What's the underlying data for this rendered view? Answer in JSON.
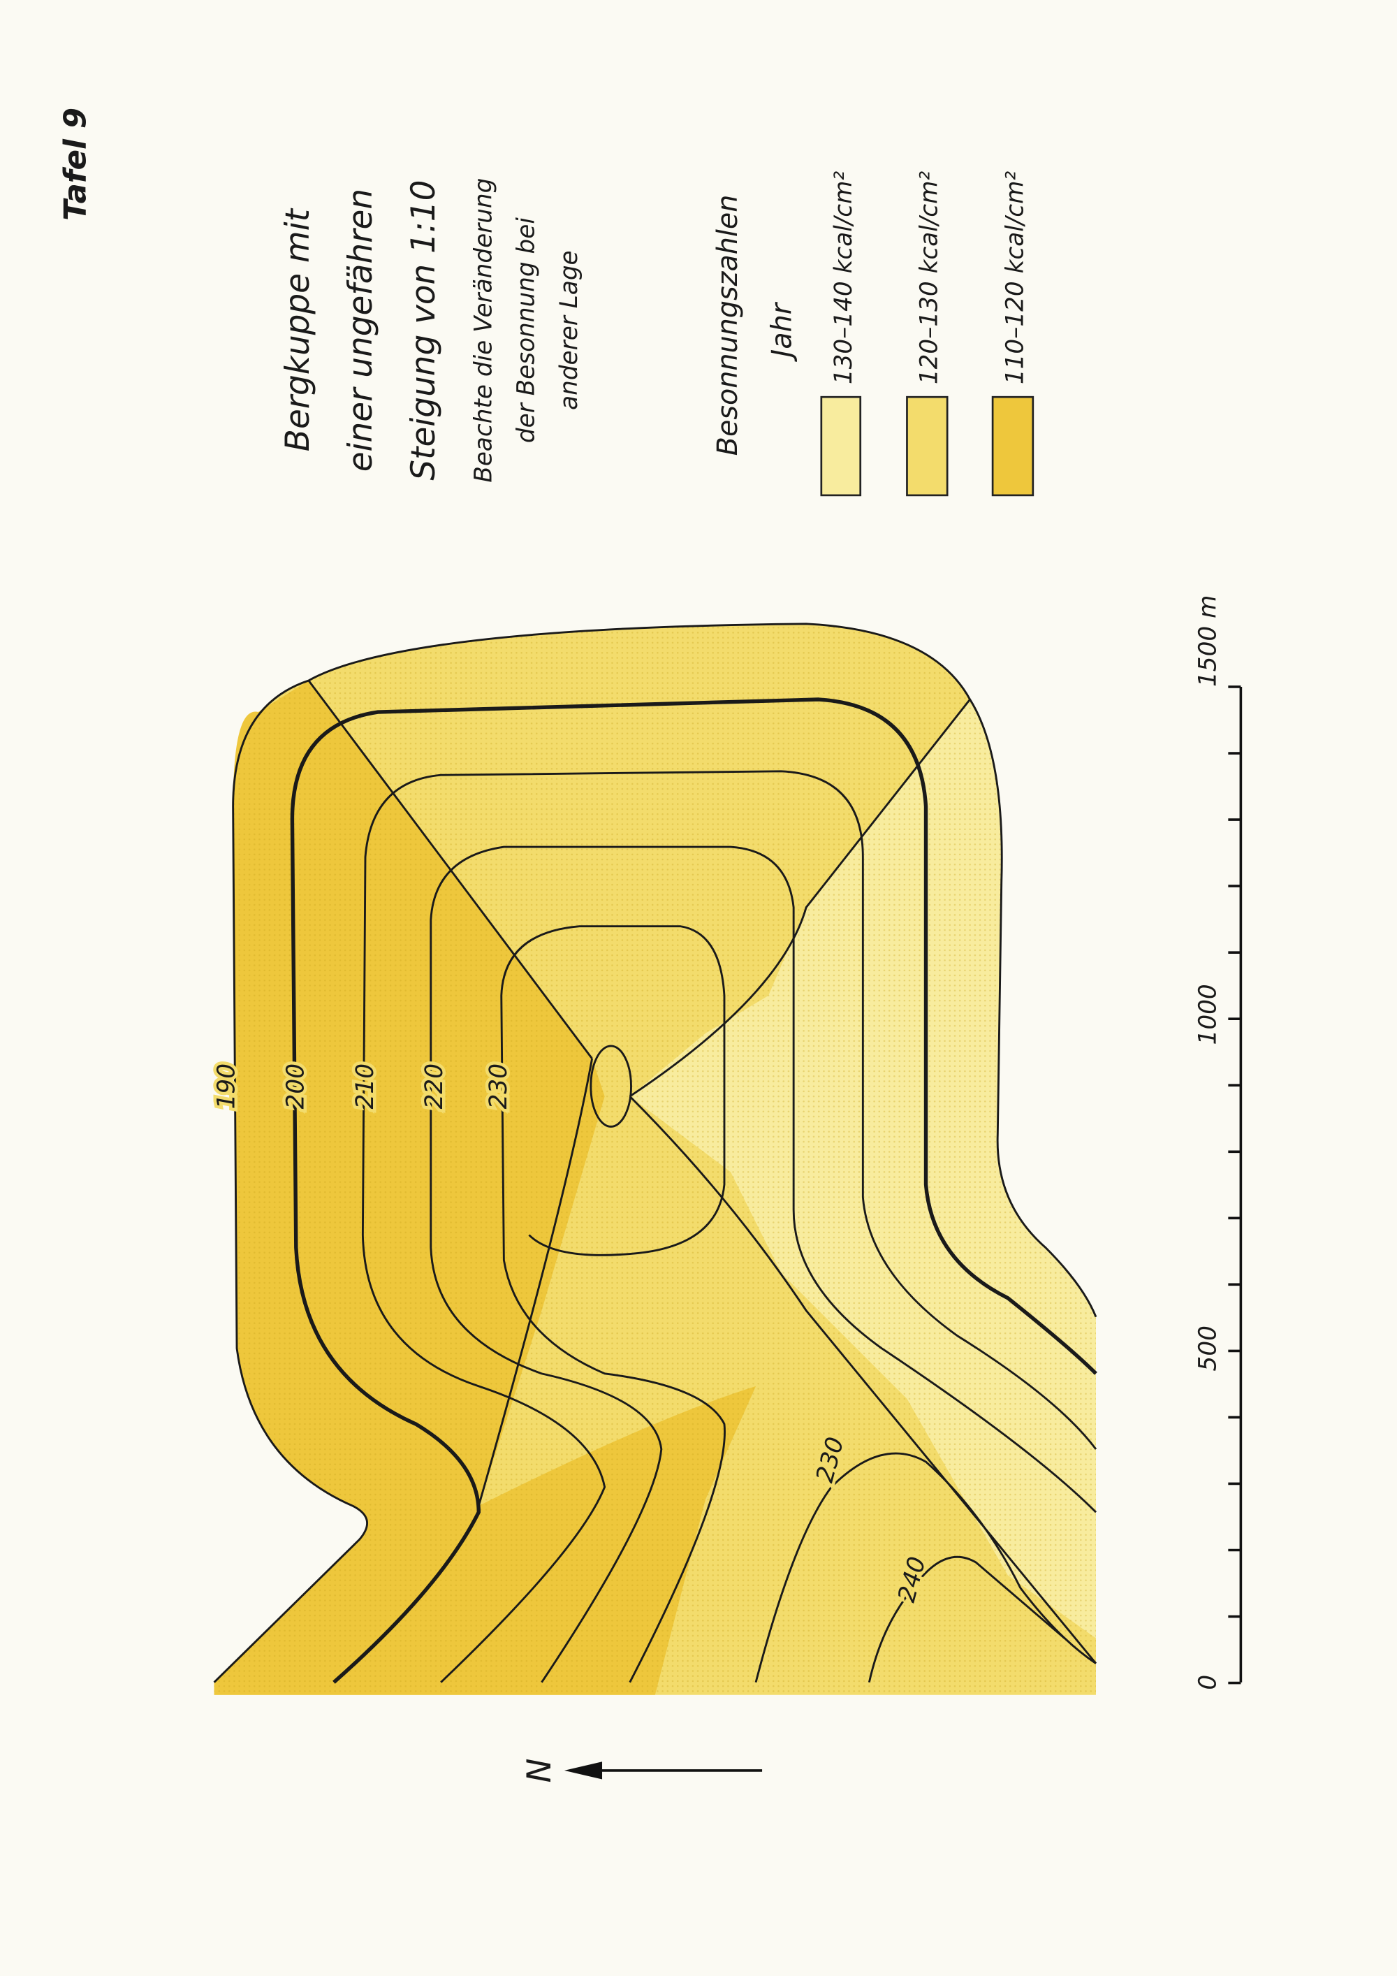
{
  "header": {
    "plate": "Tafel 9"
  },
  "title": {
    "lines": [
      "Bergkuppe mit",
      "einer ungefähren",
      "Steigung von 1:10"
    ]
  },
  "note": {
    "lines": [
      "Beachte die Veränderung",
      "der Besonnung bei",
      "anderer Lage"
    ]
  },
  "legend": {
    "title": "Besonnungszahlen",
    "subtitle": "Jahr",
    "items": [
      {
        "label": "130–140 kcal/cm²",
        "color": "#f8ec9e"
      },
      {
        "label": "120–130 kcal/cm²",
        "color": "#f3dc6c"
      },
      {
        "label": "110–120 kcal/cm²",
        "color": "#eec73c"
      }
    ]
  },
  "contours": {
    "labels": [
      "190",
      "200",
      "210",
      "220",
      "230",
      "230",
      "240"
    ]
  },
  "scale": {
    "labels": [
      "0",
      "500",
      "1000",
      "1500 m"
    ]
  },
  "north": {
    "label": "N"
  }
}
